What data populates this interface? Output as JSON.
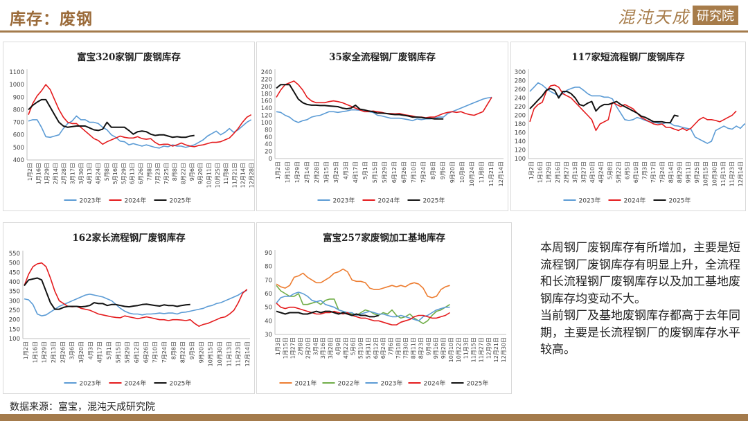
{
  "header": {
    "title": "库存：废钢",
    "brand_script": "混沌天成",
    "brand_box": "研究院"
  },
  "note": [
    "本周钢厂废钢库存有所增加，主要是短流程钢厂废钢库存有明显上升，全流程和长流程钢厂废钢库存以及加工基地废钢库存均变动不大。",
    "当前钢厂及基地废钢库存都高于去年同期，主要是长流程钢厂的废钢库存水平较高。"
  ],
  "source": "数据来源：富宝，混沌天成研究院",
  "colors": {
    "2021": "#ed7d31",
    "2022": "#70ad47",
    "2023": "#5b9bd5",
    "2024": "#e41a1c",
    "2025": "#111111"
  },
  "chart_data": [
    {
      "type": "line",
      "title": "富宝320家钢厂废钢库存",
      "x_ticks": [
        "1月2日",
        "1月16日",
        "1月29日",
        "2月14日",
        "2月28日",
        "3月17日",
        "3月30日",
        "4月13日",
        "4月24日",
        "5月8日",
        "5月16日",
        "5月29日",
        "6月13日",
        "6月26日",
        "7月8日",
        "7月23日",
        "7月25日",
        "8月8日",
        "8月22日",
        "9月6日",
        "9月20日",
        "10月11日",
        "10月25日",
        "11月8日",
        "11月21日",
        "12月14日",
        "12月28日"
      ],
      "ylim": [
        400,
        1100
      ],
      "yticks": [
        400,
        500,
        600,
        700,
        800,
        900,
        1000,
        1100
      ],
      "series": [
        {
          "name": "2023年",
          "values": [
            710,
            720,
            720,
            660,
            585,
            580,
            590,
            600,
            650,
            690,
            710,
            750,
            720,
            720,
            700,
            700,
            690,
            660,
            640,
            600,
            580,
            550,
            545,
            520,
            530,
            520,
            510,
            520,
            510,
            500,
            495,
            510,
            505,
            520,
            510,
            510,
            500,
            510,
            520,
            540,
            560,
            590,
            610,
            630,
            600,
            620,
            650,
            620,
            640,
            670,
            700,
            720
          ]
        },
        {
          "name": "2024年",
          "values": [
            760,
            850,
            910,
            950,
            1000,
            960,
            880,
            800,
            740,
            700,
            690,
            690,
            660,
            630,
            600,
            570,
            555,
            525,
            545,
            560,
            575,
            590,
            580,
            575,
            575,
            585,
            570,
            565,
            570,
            540,
            520,
            525,
            525,
            510,
            520,
            535,
            520,
            510,
            505,
            515,
            520,
            530,
            540,
            540,
            545,
            560,
            575,
            610,
            650,
            700,
            740,
            760
          ]
        },
        {
          "name": "2025年",
          "values": [
            800,
            835,
            860,
            880,
            880,
            820,
            760,
            700,
            670,
            660,
            665,
            670,
            670,
            670,
            655,
            640,
            635,
            645,
            700,
            660,
            660,
            660,
            660,
            635,
            605,
            625,
            630,
            625,
            605,
            595,
            600,
            600,
            590,
            580,
            585,
            580,
            580,
            590,
            595
          ]
        }
      ]
    },
    {
      "type": "line",
      "title": "35家全流程钢厂废钢库存",
      "x_ticks": [
        "1月2日",
        "1月16日",
        "1月29日",
        "2月14日",
        "2月28日",
        "3月15日",
        "3月25日",
        "4月3日",
        "4月17日",
        "5月1日",
        "5月15日",
        "5月29日",
        "6月12日",
        "6月26日",
        "7月10日",
        "7月24日",
        "8月8日",
        "9月6日",
        "9月20日",
        "10月8日",
        "10月24日",
        "11月8日",
        "11月21日",
        "12月14日"
      ],
      "ylim": [
        0,
        240
      ],
      "yticks": [
        0,
        20,
        40,
        60,
        80,
        100,
        120,
        140,
        160,
        180,
        200,
        220,
        240
      ],
      "series": [
        {
          "name": "2023年",
          "values": [
            130,
            128,
            120,
            115,
            105,
            100,
            105,
            108,
            115,
            118,
            120,
            125,
            130,
            130,
            128,
            130,
            132,
            135,
            135,
            134,
            133,
            130,
            128,
            120,
            118,
            115,
            112,
            112,
            112,
            110,
            108,
            105,
            110,
            108,
            110,
            110,
            112,
            115,
            115,
            125,
            130,
            135,
            140,
            145,
            150,
            155,
            160,
            165,
            168,
            170
          ]
        },
        {
          "name": "2024年",
          "values": [
            170,
            190,
            205,
            210,
            215,
            205,
            190,
            170,
            160,
            155,
            155,
            155,
            158,
            160,
            158,
            155,
            150,
            145,
            140,
            135,
            130,
            130,
            132,
            130,
            128,
            125,
            125,
            124,
            125,
            122,
            120,
            118,
            115,
            115,
            113,
            115,
            115,
            120,
            125,
            128,
            130,
            128,
            130,
            125,
            122,
            120,
            125,
            130,
            150,
            170
          ]
        },
        {
          "name": "2025年",
          "values": [
            195,
            205,
            205,
            205,
            185,
            165,
            155,
            150,
            148,
            148,
            147,
            147,
            146,
            145,
            144,
            140,
            138,
            140,
            148,
            137,
            135,
            132,
            130,
            126,
            126,
            125,
            123,
            122,
            122,
            120,
            118,
            115,
            115,
            114,
            112,
            112,
            110,
            110,
            110
          ]
        }
      ]
    },
    {
      "type": "line",
      "title": "117家短流程钢厂废钢库存",
      "x_ticks": [
        "1月2日",
        "1月16日",
        "1月29日",
        "2月16日",
        "2月27日",
        "3月13日",
        "3月27日",
        "4月10日",
        "4月24日",
        "5月8日",
        "5月22日",
        "6月5日",
        "6月19日",
        "7月3日",
        "7月17日",
        "7月24日",
        "8月14日",
        "8月29日",
        "9月11日",
        "9月25日",
        "10月15日",
        "10月30日",
        "11月13日",
        "11月23日",
        "12月14日"
      ],
      "ylim": [
        100,
        300
      ],
      "yticks": [
        100,
        120,
        140,
        160,
        180,
        200,
        220,
        240,
        260,
        280,
        300
      ],
      "series": [
        {
          "name": "2023年",
          "values": [
            255,
            265,
            275,
            270,
            262,
            255,
            250,
            245,
            250,
            258,
            262,
            265,
            265,
            258,
            250,
            245,
            245,
            245,
            242,
            242,
            238,
            220,
            205,
            190,
            188,
            190,
            195,
            192,
            188,
            185,
            184,
            182,
            180,
            183,
            182,
            176,
            175,
            172,
            170,
            168,
            150,
            145,
            140,
            135,
            140,
            165,
            170,
            175,
            170,
            168,
            175,
            170,
            180,
            175
          ]
        },
        {
          "name": "2024年",
          "values": [
            185,
            215,
            225,
            230,
            255,
            268,
            270,
            265,
            250,
            245,
            240,
            230,
            220,
            210,
            200,
            190,
            165,
            180,
            185,
            190,
            230,
            225,
            220,
            225,
            220,
            215,
            205,
            195,
            190,
            185,
            180,
            178,
            180,
            172,
            172,
            168,
            165,
            170,
            165,
            170,
            180,
            190,
            195,
            190,
            190,
            188,
            185,
            190,
            195,
            200,
            210
          ]
        },
        {
          "name": "2025年",
          "values": [
            215,
            225,
            235,
            245,
            258,
            262,
            258,
            240,
            255,
            255,
            250,
            240,
            225,
            222,
            228,
            232,
            210,
            220,
            225,
            225,
            228,
            232,
            225,
            220,
            215,
            210,
            205,
            198,
            195,
            190,
            185,
            185,
            185,
            183,
            183,
            200,
            198
          ]
        }
      ]
    },
    {
      "type": "line",
      "title": "162家长流程钢厂废钢库存",
      "x_ticks": [
        "1月2日",
        "1月16日",
        "1月29日",
        "2月13日",
        "2月26日",
        "3月6日",
        "3月20日",
        "4月3日",
        "4月17日",
        "5月1日",
        "5月15日",
        "5月29日",
        "6月12日",
        "6月26日",
        "7月10日",
        "7月24日",
        "8月8日",
        "8月22日",
        "9月5日",
        "9月20日",
        "10月15日",
        "10月30日",
        "11月13日",
        "11月23日",
        "12月14日"
      ],
      "ylim": [
        100,
        550
      ],
      "yticks": [
        100,
        150,
        200,
        250,
        300,
        350,
        400,
        450,
        500,
        550
      ],
      "series": [
        {
          "name": "2023年",
          "values": [
            310,
            305,
            280,
            230,
            220,
            225,
            240,
            255,
            270,
            280,
            290,
            300,
            310,
            320,
            330,
            335,
            330,
            325,
            320,
            310,
            300,
            280,
            260,
            245,
            235,
            230,
            230,
            225,
            230,
            230,
            232,
            235,
            232,
            235,
            235,
            230,
            238,
            240,
            245,
            250,
            255,
            260,
            270,
            275,
            285,
            290,
            300,
            310,
            320,
            330,
            345,
            355
          ]
        },
        {
          "name": "2024年",
          "values": [
            380,
            440,
            480,
            495,
            500,
            480,
            420,
            350,
            300,
            285,
            270,
            268,
            270,
            260,
            255,
            250,
            240,
            230,
            225,
            220,
            215,
            212,
            210,
            220,
            215,
            210,
            205,
            210,
            215,
            210,
            205,
            200,
            200,
            195,
            200,
            200,
            198,
            195,
            200,
            180,
            165,
            175,
            180,
            190,
            200,
            210,
            215,
            230,
            250,
            290,
            340,
            360
          ]
        },
        {
          "name": "2025年",
          "values": [
            380,
            410,
            415,
            420,
            410,
            350,
            290,
            255,
            255,
            265,
            270,
            270,
            270,
            268,
            270,
            275,
            290,
            285,
            285,
            275,
            280,
            280,
            275,
            270,
            268,
            272,
            275,
            280,
            282,
            278,
            275,
            272,
            278,
            275,
            275,
            270,
            275,
            278,
            280
          ]
        }
      ]
    },
    {
      "type": "line",
      "title": "富宝257家废钢加工基地库存",
      "x_ticks": [
        "1月3日",
        "1月15日",
        "1月27日",
        "2月8日",
        "2月20日",
        "3月4日",
        "3月16日",
        "3月28日",
        "4月9日",
        "4月22日",
        "5月6日",
        "5月19日",
        "5月31日",
        "6月12日",
        "6月24日",
        "7月6日",
        "7月18日",
        "7月30日",
        "8月11日",
        "8月23日",
        "9月4日",
        "9月16日",
        "9月28日",
        "10月10日",
        "10月22日",
        "11月3日",
        "11月15日",
        "11月27日",
        "12月9日",
        "12月21日",
        "12月30日"
      ],
      "ylim": [
        30,
        90
      ],
      "yticks": [
        30,
        40,
        50,
        60,
        70,
        80,
        90
      ],
      "series": [
        {
          "name": "2021年",
          "values": [
            67,
            65,
            64,
            66,
            72,
            73,
            75,
            72,
            70,
            68,
            68,
            70,
            72,
            75,
            76,
            78,
            76,
            70,
            69,
            69,
            68,
            64,
            63,
            63,
            64,
            65,
            66,
            65,
            66,
            65,
            67,
            68,
            67,
            64,
            58,
            57,
            58,
            63,
            65,
            66
          ]
        },
        {
          "name": "2022年",
          "values": [
            66,
            62,
            60,
            58,
            58,
            60,
            52,
            52,
            53,
            54,
            52,
            55,
            56,
            56,
            48,
            47,
            46,
            45,
            44,
            46,
            48,
            47,
            45,
            44,
            46,
            45,
            48,
            44,
            42,
            43,
            45,
            42,
            40,
            38,
            40,
            44,
            47,
            48,
            50,
            52
          ]
        },
        {
          "name": "2023年",
          "values": [
            53,
            57,
            58,
            58,
            60,
            61,
            60,
            58,
            55,
            54,
            55,
            52,
            51,
            50,
            48,
            47,
            46,
            46,
            44,
            45,
            46,
            47,
            46,
            45,
            45,
            44,
            43,
            43,
            44,
            43,
            42,
            41,
            40,
            43,
            44,
            46,
            48,
            49,
            50,
            50
          ]
        },
        {
          "name": "2024年",
          "values": [
            53,
            50,
            49,
            50,
            50,
            49,
            48,
            47,
            46,
            45,
            45,
            46,
            46,
            47,
            46,
            45,
            46,
            44,
            43,
            42,
            42,
            41,
            40,
            40,
            39,
            38,
            37,
            37,
            39,
            40,
            41,
            43,
            44,
            44,
            43,
            42,
            42,
            43,
            44,
            46
          ]
        },
        {
          "name": "2025年",
          "values": [
            47,
            46,
            45,
            46,
            46,
            46,
            45,
            45,
            46,
            47,
            46,
            47,
            47,
            46,
            45,
            46,
            45,
            44,
            45,
            44,
            44,
            43,
            43,
            44
          ]
        }
      ]
    }
  ]
}
